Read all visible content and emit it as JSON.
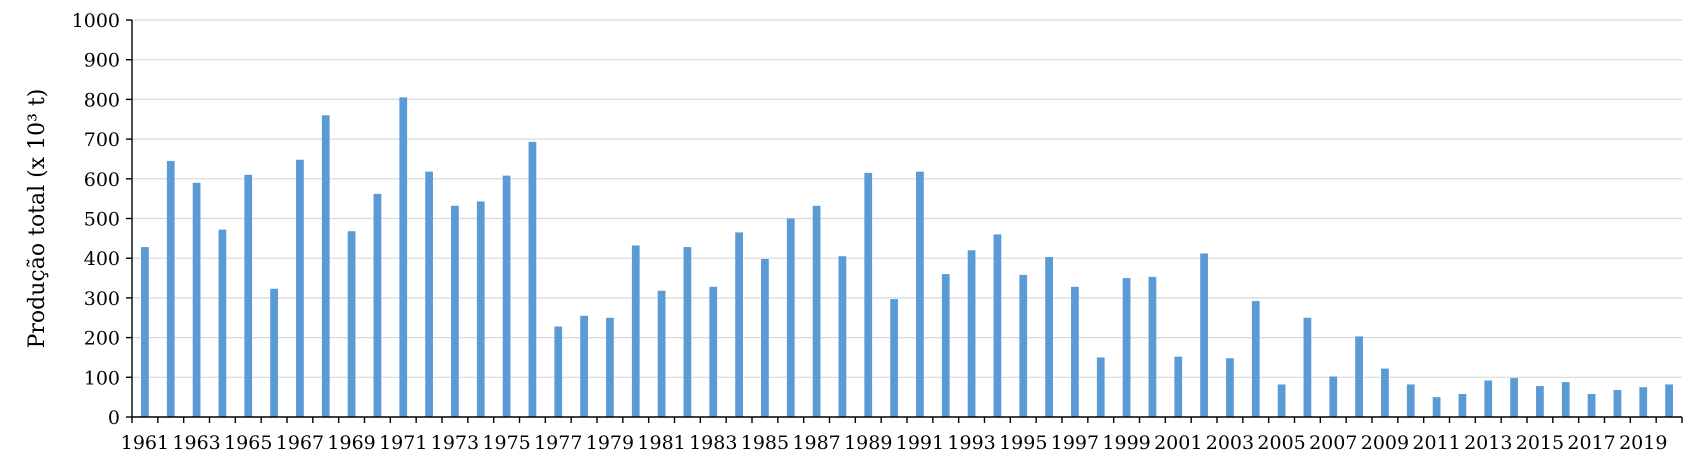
{
  "chart_data": {
    "type": "bar",
    "title": "",
    "xlabel": "",
    "ylabel": "Produção total (x 10³ t)",
    "ylim": [
      0,
      1000
    ],
    "yticks": [
      "0",
      "100",
      "200",
      "300",
      "400",
      "500",
      "600",
      "700",
      "800",
      "900",
      "1000"
    ],
    "grid": true,
    "bar_color": "#5b9bd5",
    "categories": [
      "1961",
      "1962",
      "1963",
      "1964",
      "1965",
      "1966",
      "1967",
      "1968",
      "1969",
      "1970",
      "1971",
      "1972",
      "1973",
      "1974",
      "1975",
      "1976",
      "1977",
      "1978",
      "1979",
      "1980",
      "1981",
      "1982",
      "1983",
      "1984",
      "1985",
      "1986",
      "1987",
      "1988",
      "1989",
      "1990",
      "1991",
      "1992",
      "1993",
      "1994",
      "1995",
      "1996",
      "1997",
      "1998",
      "1999",
      "2000",
      "2001",
      "2002",
      "2003",
      "2004",
      "2005",
      "2006",
      "2007",
      "2008",
      "2009",
      "2010",
      "2011",
      "2012",
      "2013",
      "2014",
      "2015",
      "2016",
      "2017",
      "2018",
      "2019",
      "2020"
    ],
    "xtick_labels": [
      "1961",
      "1963",
      "1965",
      "1967",
      "1969",
      "1971",
      "1973",
      "1975",
      "1977",
      "1979",
      "1981",
      "1983",
      "1985",
      "1987",
      "1989",
      "1991",
      "1993",
      "1995",
      "1997",
      "1999",
      "2001",
      "2003",
      "2005",
      "2007",
      "2009",
      "2011",
      "2013",
      "2015",
      "2017",
      "2019"
    ],
    "values": [
      428,
      645,
      590,
      472,
      610,
      323,
      648,
      760,
      468,
      562,
      805,
      618,
      532,
      543,
      608,
      693,
      228,
      255,
      250,
      432,
      318,
      428,
      328,
      465,
      398,
      500,
      532,
      405,
      615,
      297,
      618,
      360,
      420,
      460,
      358,
      403,
      328,
      150,
      350,
      353,
      152,
      412,
      148,
      292,
      82,
      250,
      102,
      203,
      122,
      82,
      50,
      58,
      92,
      98,
      78,
      88,
      58,
      68,
      75,
      82
    ]
  }
}
